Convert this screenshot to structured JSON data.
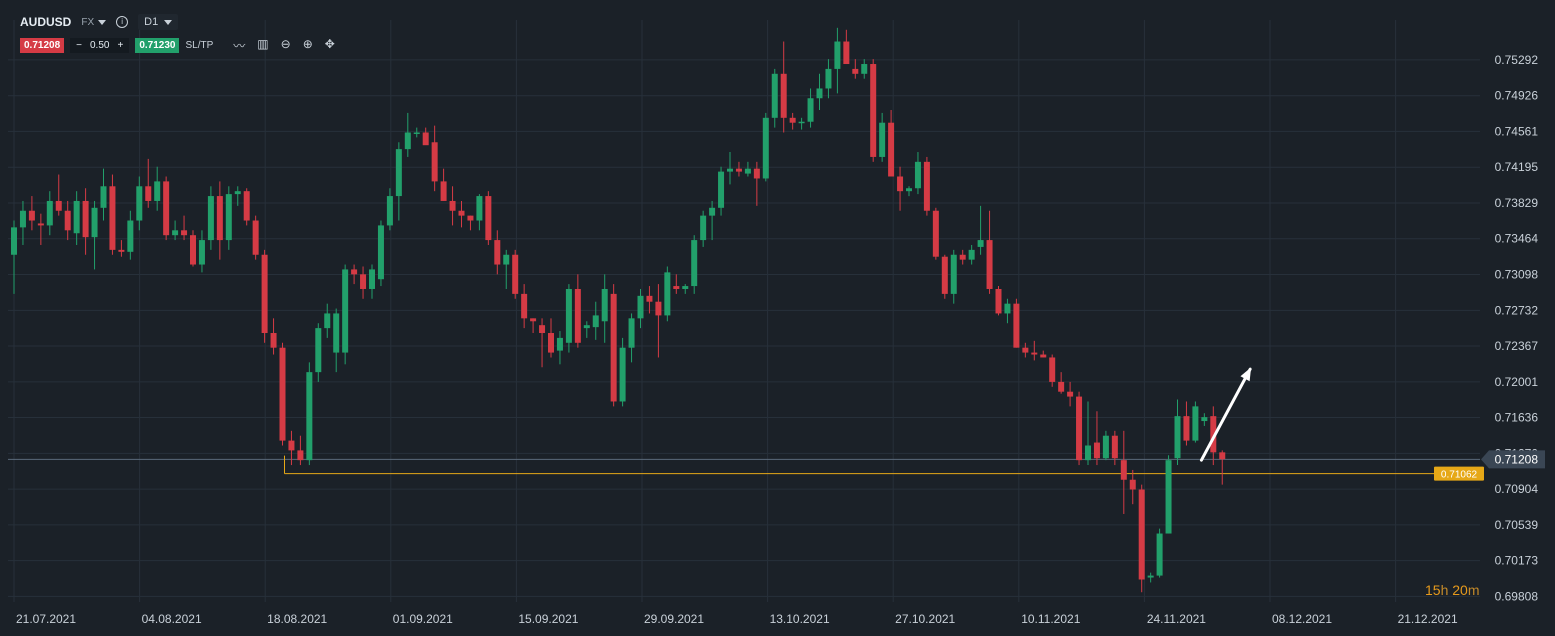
{
  "header": {
    "symbol": "AUDUSD",
    "market": "FX",
    "info_icon": "info-icon",
    "timeframe": "D1"
  },
  "trade_bar": {
    "bid": "0.71208",
    "minus": "−",
    "quantity": "0.50",
    "plus": "+",
    "ask": "0.71230",
    "sltp": "SL/TP",
    "tools": [
      "line-chart-icon",
      "candles-icon",
      "zoom-out-icon",
      "zoom-in-icon",
      "crosshair-move-icon"
    ]
  },
  "countdown": {
    "hours": "15",
    "h_unit": "h",
    "minutes": "20",
    "m_unit": "m"
  },
  "colors": {
    "background": "#1b2128",
    "grid": "#27303a",
    "up": "#22a06b",
    "down": "#d53b45",
    "price_line": "#5b6a7a",
    "level_line": "#e6a817",
    "axis_text": "#c9d1d9"
  },
  "chart_data": {
    "type": "candlestick",
    "symbol": "AUDUSD",
    "timeframe": "D1",
    "ylim": [
      0.6975,
      0.757
    ],
    "y_ticks": [
      "0.75292",
      "0.74926",
      "0.74561",
      "0.74195",
      "0.73829",
      "0.73464",
      "0.73098",
      "0.72732",
      "0.72367",
      "0.72001",
      "0.71636",
      "0.71270",
      "0.70904",
      "0.70539",
      "0.70173",
      "0.69808"
    ],
    "x_ticks": [
      "21.07.2021",
      "04.08.2021",
      "18.08.2021",
      "01.09.2021",
      "15.09.2021",
      "29.09.2021",
      "13.10.2021",
      "27.10.2021",
      "10.11.2021",
      "24.11.2021",
      "08.12.2021",
      "21.12.2021"
    ],
    "current_price": 0.71208,
    "current_price_label": "0.71208",
    "horizontal_level": 0.71062,
    "horizontal_level_label": "0.71062",
    "arrow": {
      "direction": "up",
      "from_index": 132,
      "from_price": 0.712,
      "to_index": 137,
      "to_price": 0.7213
    },
    "candles": [
      [
        0.733,
        0.7365,
        0.729,
        0.7358
      ],
      [
        0.7358,
        0.7385,
        0.734,
        0.7375
      ],
      [
        0.7375,
        0.739,
        0.7355,
        0.7365
      ],
      [
        0.7362,
        0.7372,
        0.734,
        0.736
      ],
      [
        0.736,
        0.7395,
        0.735,
        0.7385
      ],
      [
        0.7385,
        0.7412,
        0.737,
        0.7375
      ],
      [
        0.7375,
        0.7385,
        0.7345,
        0.7355
      ],
      [
        0.7352,
        0.7395,
        0.734,
        0.7385
      ],
      [
        0.7385,
        0.7398,
        0.733,
        0.7348
      ],
      [
        0.7348,
        0.7385,
        0.7315,
        0.7378
      ],
      [
        0.7378,
        0.7418,
        0.7365,
        0.74
      ],
      [
        0.74,
        0.7412,
        0.733,
        0.7335
      ],
      [
        0.7335,
        0.7345,
        0.7328,
        0.7333
      ],
      [
        0.7333,
        0.7375,
        0.7325,
        0.7365
      ],
      [
        0.7365,
        0.741,
        0.7355,
        0.74
      ],
      [
        0.74,
        0.7428,
        0.7378,
        0.7385
      ],
      [
        0.7385,
        0.742,
        0.7375,
        0.7405
      ],
      [
        0.7405,
        0.741,
        0.7345,
        0.735
      ],
      [
        0.735,
        0.7365,
        0.7345,
        0.7355
      ],
      [
        0.7355,
        0.737,
        0.7345,
        0.735
      ],
      [
        0.735,
        0.7355,
        0.7318,
        0.732
      ],
      [
        0.732,
        0.7355,
        0.7312,
        0.7345
      ],
      [
        0.7345,
        0.74,
        0.7335,
        0.739
      ],
      [
        0.739,
        0.7405,
        0.7325,
        0.7345
      ],
      [
        0.7345,
        0.74,
        0.7335,
        0.7392
      ],
      [
        0.7392,
        0.74,
        0.738,
        0.7395
      ],
      [
        0.7395,
        0.7398,
        0.736,
        0.7365
      ],
      [
        0.7365,
        0.737,
        0.7325,
        0.733
      ],
      [
        0.733,
        0.7335,
        0.724,
        0.725
      ],
      [
        0.725,
        0.7265,
        0.7228,
        0.7235
      ],
      [
        0.7235,
        0.724,
        0.7135,
        0.714
      ],
      [
        0.714,
        0.715,
        0.7115,
        0.713
      ],
      [
        0.713,
        0.7145,
        0.7115,
        0.712
      ],
      [
        0.712,
        0.722,
        0.7115,
        0.721
      ],
      [
        0.721,
        0.726,
        0.72,
        0.7255
      ],
      [
        0.7255,
        0.728,
        0.7245,
        0.727
      ],
      [
        0.723,
        0.7275,
        0.721,
        0.727
      ],
      [
        0.723,
        0.732,
        0.7218,
        0.7315
      ],
      [
        0.7315,
        0.732,
        0.73,
        0.731
      ],
      [
        0.731,
        0.7318,
        0.7285,
        0.7295
      ],
      [
        0.7295,
        0.732,
        0.7285,
        0.7315
      ],
      [
        0.7305,
        0.7365,
        0.7298,
        0.736
      ],
      [
        0.736,
        0.7398,
        0.7355,
        0.739
      ],
      [
        0.739,
        0.7445,
        0.7365,
        0.7438
      ],
      [
        0.7438,
        0.7475,
        0.743,
        0.7455
      ],
      [
        0.7455,
        0.746,
        0.745,
        0.7455
      ],
      [
        0.7455,
        0.746,
        0.7445,
        0.7442
      ],
      [
        0.7445,
        0.7462,
        0.7395,
        0.7405
      ],
      [
        0.7405,
        0.7418,
        0.7385,
        0.7385
      ],
      [
        0.7385,
        0.74,
        0.736,
        0.7375
      ],
      [
        0.7375,
        0.7385,
        0.7358,
        0.737
      ],
      [
        0.737,
        0.737,
        0.7355,
        0.7365
      ],
      [
        0.7365,
        0.7392,
        0.7355,
        0.739
      ],
      [
        0.739,
        0.7395,
        0.734,
        0.7345
      ],
      [
        0.7345,
        0.7355,
        0.731,
        0.732
      ],
      [
        0.732,
        0.7335,
        0.7295,
        0.733
      ],
      [
        0.733,
        0.7335,
        0.7285,
        0.729
      ],
      [
        0.729,
        0.73,
        0.7255,
        0.7265
      ],
      [
        0.7265,
        0.7265,
        0.725,
        0.7262
      ],
      [
        0.7258,
        0.7265,
        0.7215,
        0.725
      ],
      [
        0.725,
        0.7265,
        0.7225,
        0.723
      ],
      [
        0.7232,
        0.7252,
        0.7218,
        0.7245
      ],
      [
        0.724,
        0.73,
        0.723,
        0.7295
      ],
      [
        0.7295,
        0.731,
        0.7235,
        0.724
      ],
      [
        0.7255,
        0.7262,
        0.7245,
        0.7258
      ],
      [
        0.7256,
        0.7282,
        0.7243,
        0.7268
      ],
      [
        0.7262,
        0.731,
        0.724,
        0.7295
      ],
      [
        0.729,
        0.73,
        0.7175,
        0.718
      ],
      [
        0.718,
        0.7245,
        0.7175,
        0.7235
      ],
      [
        0.7235,
        0.727,
        0.722,
        0.7265
      ],
      [
        0.7265,
        0.7295,
        0.7255,
        0.7288
      ],
      [
        0.7288,
        0.7298,
        0.727,
        0.7282
      ],
      [
        0.7282,
        0.73,
        0.7225,
        0.7268
      ],
      [
        0.7268,
        0.7318,
        0.7262,
        0.7312
      ],
      [
        0.7298,
        0.731,
        0.729,
        0.7295
      ],
      [
        0.7295,
        0.73,
        0.729,
        0.7298
      ],
      [
        0.7298,
        0.735,
        0.729,
        0.7345
      ],
      [
        0.7345,
        0.7375,
        0.7338,
        0.737
      ],
      [
        0.737,
        0.7385,
        0.7345,
        0.7378
      ],
      [
        0.7378,
        0.742,
        0.737,
        0.7415
      ],
      [
        0.7415,
        0.7435,
        0.7402,
        0.7418
      ],
      [
        0.7418,
        0.7425,
        0.741,
        0.7415
      ],
      [
        0.7413,
        0.7425,
        0.741,
        0.7418
      ],
      [
        0.7418,
        0.7425,
        0.738,
        0.7408
      ],
      [
        0.7408,
        0.7475,
        0.7405,
        0.747
      ],
      [
        0.747,
        0.752,
        0.746,
        0.7515
      ],
      [
        0.7515,
        0.7548,
        0.7455,
        0.747
      ],
      [
        0.747,
        0.7475,
        0.7458,
        0.7465
      ],
      [
        0.7465,
        0.747,
        0.7458,
        0.7466
      ],
      [
        0.7466,
        0.75,
        0.746,
        0.749
      ],
      [
        0.749,
        0.7515,
        0.7478,
        0.75
      ],
      [
        0.75,
        0.753,
        0.749,
        0.752
      ],
      [
        0.752,
        0.7562,
        0.7495,
        0.7548
      ],
      [
        0.7548,
        0.756,
        0.7525,
        0.7525
      ],
      [
        0.752,
        0.753,
        0.751,
        0.7515
      ],
      [
        0.7515,
        0.753,
        0.751,
        0.7525
      ],
      [
        0.7525,
        0.753,
        0.7425,
        0.743
      ],
      [
        0.743,
        0.7475,
        0.7425,
        0.7465
      ],
      [
        0.7465,
        0.7478,
        0.741,
        0.741
      ],
      [
        0.741,
        0.742,
        0.7375,
        0.7395
      ],
      [
        0.7395,
        0.74,
        0.739,
        0.7398
      ],
      [
        0.7398,
        0.7435,
        0.7392,
        0.7425
      ],
      [
        0.7425,
        0.743,
        0.737,
        0.7375
      ],
      [
        0.7375,
        0.7378,
        0.7325,
        0.7328
      ],
      [
        0.7328,
        0.733,
        0.7285,
        0.729
      ],
      [
        0.729,
        0.7335,
        0.728,
        0.733
      ],
      [
        0.733,
        0.7335,
        0.732,
        0.7325
      ],
      [
        0.7325,
        0.734,
        0.732,
        0.7335
      ],
      [
        0.7338,
        0.738,
        0.733,
        0.7345
      ],
      [
        0.7345,
        0.7375,
        0.729,
        0.7295
      ],
      [
        0.7295,
        0.7298,
        0.7268,
        0.727
      ],
      [
        0.727,
        0.7285,
        0.726,
        0.728
      ],
      [
        0.728,
        0.7285,
        0.7235,
        0.7235
      ],
      [
        0.7235,
        0.724,
        0.7225,
        0.723
      ],
      [
        0.723,
        0.7242,
        0.7222,
        0.7228
      ],
      [
        0.7228,
        0.7232,
        0.7225,
        0.7225
      ],
      [
        0.7225,
        0.7228,
        0.7195,
        0.72
      ],
      [
        0.72,
        0.721,
        0.7188,
        0.719
      ],
      [
        0.719,
        0.72,
        0.7175,
        0.7185
      ],
      [
        0.7185,
        0.719,
        0.7115,
        0.712
      ],
      [
        0.712,
        0.718,
        0.7115,
        0.7135
      ],
      [
        0.7138,
        0.717,
        0.7115,
        0.7122
      ],
      [
        0.7122,
        0.715,
        0.712,
        0.7145
      ],
      [
        0.7145,
        0.715,
        0.7115,
        0.7122
      ],
      [
        0.712,
        0.715,
        0.7065,
        0.71
      ],
      [
        0.71,
        0.711,
        0.7075,
        0.709
      ],
      [
        0.709,
        0.7095,
        0.6985,
        0.6998
      ],
      [
        0.7,
        0.7005,
        0.6995,
        0.7002
      ],
      [
        0.7002,
        0.705,
        0.7,
        0.7045
      ],
      [
        0.7045,
        0.7125,
        0.7045,
        0.712
      ],
      [
        0.7122,
        0.7182,
        0.7115,
        0.7165
      ],
      [
        0.7165,
        0.718,
        0.7135,
        0.714
      ],
      [
        0.714,
        0.718,
        0.7138,
        0.7175
      ],
      [
        0.716,
        0.7168,
        0.7155,
        0.7164
      ],
      [
        0.7165,
        0.7175,
        0.7115,
        0.7128
      ],
      [
        0.7128,
        0.713,
        0.7095,
        0.7121
      ]
    ]
  }
}
